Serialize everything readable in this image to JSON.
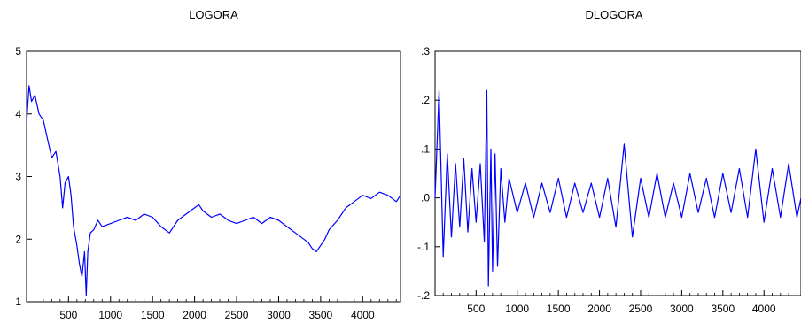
{
  "chart_data": [
    {
      "type": "line",
      "title": "LOGORA",
      "xlabel": "",
      "ylabel": "",
      "xlim": [
        1,
        4450
      ],
      "ylim": [
        1,
        5
      ],
      "x_ticks": [
        500,
        1000,
        1500,
        2000,
        2500,
        3000,
        3500,
        4000
      ],
      "y_ticks": [
        1,
        2,
        3,
        4,
        5
      ],
      "y_tick_labels": [
        "1",
        "2",
        "3",
        "4",
        "5"
      ],
      "grid": false,
      "line_color": "#0000ff",
      "series": [
        {
          "x": [
            1,
            30,
            60,
            100,
            150,
            200,
            250,
            300,
            350,
            400,
            430,
            460,
            500,
            530,
            560,
            600,
            630,
            660,
            690,
            710,
            730,
            760,
            800,
            850,
            900,
            1000,
            1100,
            1200,
            1300,
            1400,
            1500,
            1600,
            1700,
            1800,
            1900,
            2000,
            2050,
            2100,
            2200,
            2300,
            2400,
            2500,
            2600,
            2700,
            2800,
            2900,
            3000,
            3100,
            3200,
            3300,
            3350,
            3400,
            3450,
            3500,
            3550,
            3600,
            3700,
            3800,
            3900,
            4000,
            4100,
            4200,
            4300,
            4400,
            4450
          ],
          "values": [
            3.85,
            4.45,
            4.2,
            4.3,
            4.0,
            3.9,
            3.6,
            3.3,
            3.4,
            3.0,
            2.5,
            2.9,
            3.0,
            2.7,
            2.2,
            1.9,
            1.6,
            1.4,
            1.8,
            1.1,
            1.8,
            2.1,
            2.15,
            2.3,
            2.2,
            2.25,
            2.3,
            2.35,
            2.3,
            2.4,
            2.35,
            2.2,
            2.1,
            2.3,
            2.4,
            2.5,
            2.55,
            2.45,
            2.35,
            2.4,
            2.3,
            2.25,
            2.3,
            2.35,
            2.25,
            2.35,
            2.3,
            2.2,
            2.1,
            2.0,
            1.95,
            1.85,
            1.8,
            1.9,
            2.0,
            2.15,
            2.3,
            2.5,
            2.6,
            2.7,
            2.65,
            2.75,
            2.7,
            2.6,
            2.7
          ]
        }
      ]
    },
    {
      "type": "line",
      "title": "DLOGORA",
      "xlabel": "",
      "ylabel": "",
      "xlim": [
        1,
        4450
      ],
      "ylim": [
        -0.2,
        0.3
      ],
      "x_ticks": [
        500,
        1000,
        1500,
        2000,
        2500,
        3000,
        3500,
        4000
      ],
      "y_ticks": [
        -0.2,
        -0.1,
        0.0,
        0.1,
        0.2,
        0.3
      ],
      "y_tick_labels": [
        "-.2",
        "-.1",
        ".0",
        ".1",
        ".2",
        ".3"
      ],
      "grid": false,
      "line_color": "#0000ff",
      "series": [
        {
          "x": [
            1,
            50,
            100,
            150,
            200,
            250,
            300,
            350,
            400,
            450,
            500,
            550,
            600,
            630,
            650,
            680,
            700,
            730,
            760,
            800,
            850,
            900,
            1000,
            1100,
            1200,
            1300,
            1400,
            1500,
            1600,
            1700,
            1800,
            1900,
            2000,
            2100,
            2200,
            2300,
            2400,
            2500,
            2600,
            2700,
            2800,
            2900,
            3000,
            3100,
            3200,
            3300,
            3400,
            3500,
            3600,
            3700,
            3800,
            3900,
            4000,
            4100,
            4200,
            4300,
            4400,
            4450
          ],
          "values": [
            0.0,
            0.22,
            -0.12,
            0.09,
            -0.08,
            0.07,
            -0.06,
            0.08,
            -0.07,
            0.06,
            -0.05,
            0.07,
            -0.09,
            0.22,
            -0.18,
            0.1,
            -0.15,
            0.09,
            -0.14,
            0.06,
            -0.05,
            0.04,
            -0.03,
            0.03,
            -0.04,
            0.03,
            -0.03,
            0.04,
            -0.04,
            0.03,
            -0.03,
            0.03,
            -0.04,
            0.04,
            -0.06,
            0.11,
            -0.08,
            0.04,
            -0.04,
            0.05,
            -0.04,
            0.03,
            -0.04,
            0.05,
            -0.03,
            0.04,
            -0.04,
            0.05,
            -0.03,
            0.06,
            -0.04,
            0.1,
            -0.05,
            0.06,
            -0.04,
            0.07,
            -0.04,
            0.0
          ]
        }
      ]
    }
  ]
}
